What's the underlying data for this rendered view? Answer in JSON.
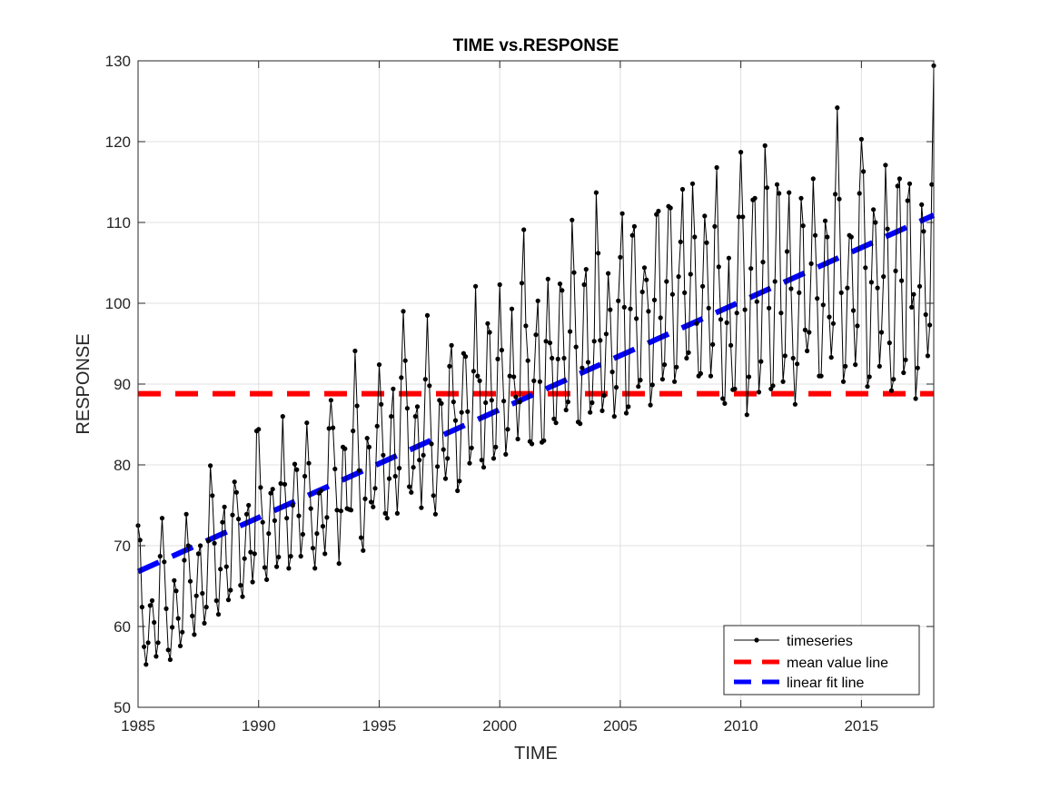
{
  "chart_data": {
    "type": "line",
    "title": "TIME vs.RESPONSE",
    "xlabel": "TIME",
    "ylabel": "RESPONSE",
    "xlim": [
      1985,
      2018
    ],
    "ylim": [
      50,
      130
    ],
    "xticks": [
      1985,
      1990,
      1995,
      2000,
      2005,
      2010,
      2015
    ],
    "yticks": [
      50,
      60,
      70,
      80,
      90,
      100,
      110,
      120,
      130
    ],
    "grid": true,
    "legend_position": "bottom-right",
    "colors": {
      "timeseries": "#000000",
      "mean": "#ff0000",
      "fit": "#0000ff",
      "grid": "#e0e0e0",
      "axis": "#262626"
    },
    "timeseries": {
      "name": "timeseries",
      "x_start": 1985,
      "step": 0.0833333,
      "values": [
        72.5,
        70.7,
        62.4,
        57.5,
        55.3,
        58.0,
        62.6,
        63.2,
        60.5,
        56.3,
        58.0,
        68.7,
        73.4,
        68.0,
        62.2,
        57.1,
        55.9,
        59.9,
        65.7,
        64.4,
        61.0,
        57.6,
        59.3,
        68.2,
        73.9,
        70.0,
        65.6,
        61.3,
        59.0,
        63.8,
        69.0,
        70.0,
        64.1,
        60.4,
        62.4,
        70.6,
        79.9,
        76.2,
        70.3,
        63.2,
        61.5,
        67.1,
        72.9,
        74.8,
        67.4,
        63.3,
        64.5,
        73.8,
        77.9,
        76.6,
        73.3,
        65.1,
        63.7,
        68.4,
        73.9,
        75.0,
        69.2,
        65.5,
        69.0,
        84.2,
        84.4,
        77.2,
        72.9,
        67.3,
        65.8,
        71.5,
        76.5,
        77.0,
        73.1,
        67.4,
        68.6,
        77.7,
        86.0,
        77.6,
        73.4,
        67.2,
        68.7,
        75.0,
        80.1,
        79.4,
        73.7,
        68.7,
        71.4,
        78.6,
        85.2,
        80.2,
        74.6,
        69.7,
        67.2,
        71.5,
        76.5,
        76.8,
        72.4,
        69.0,
        73.5,
        84.5,
        88.0,
        84.6,
        79.5,
        74.4,
        67.8,
        74.3,
        82.2,
        82.0,
        74.6,
        74.5,
        74.4,
        84.2,
        94.1,
        87.3,
        79.3,
        71.0,
        69.4,
        75.8,
        83.3,
        82.2,
        75.4,
        74.8,
        77.1,
        84.8,
        92.4,
        87.5,
        81.2,
        74.0,
        73.4,
        78.3,
        86.0,
        89.4,
        78.6,
        74.0,
        79.6,
        90.8,
        99.0,
        92.9,
        87.0,
        77.3,
        76.6,
        79.7,
        86.0,
        87.2,
        80.6,
        74.7,
        81.2,
        90.6,
        98.5,
        89.8,
        82.6,
        76.2,
        73.9,
        79.8,
        88.0,
        87.6,
        81.9,
        78.3,
        80.8,
        92.2,
        94.8,
        87.8,
        85.5,
        76.8,
        78.0,
        86.5,
        93.8,
        93.4,
        86.6,
        80.2,
        82.1,
        91.6,
        102.1,
        91.0,
        90.4,
        80.6,
        79.7,
        87.7,
        97.5,
        96.4,
        88.0,
        80.8,
        82.2,
        93.1,
        102.3,
        94.2,
        87.9,
        81.3,
        84.4,
        91.0,
        99.3,
        90.9,
        88.4,
        83.2,
        87.8,
        102.5,
        109.1,
        97.2,
        92.9,
        82.9,
        82.6,
        90.4,
        96.1,
        100.3,
        90.3,
        82.8,
        83.0,
        95.3,
        103.0,
        95.1,
        93.2,
        85.7,
        85.2,
        93.1,
        102.4,
        101.6,
        93.2,
        86.8,
        87.8,
        96.5,
        110.3,
        103.8,
        94.6,
        85.3,
        85.1,
        92.0,
        102.3,
        104.2,
        92.7,
        86.5,
        87.7,
        95.3,
        113.7,
        106.2,
        95.4,
        86.7,
        88.6,
        96.2,
        103.7,
        99.2,
        91.5,
        86.0,
        89.6,
        100.3,
        105.7,
        111.1,
        99.5,
        86.4,
        87.2,
        99.3,
        108.4,
        109.5,
        98.1,
        89.7,
        90.5,
        101.4,
        104.4,
        102.9,
        99.0,
        87.4,
        89.9,
        100.4,
        111.0,
        111.4,
        98.2,
        90.6,
        92.4,
        102.7,
        112.0,
        111.8,
        101.1,
        90.3,
        92.1,
        103.3,
        107.6,
        114.1,
        101.3,
        93.2,
        93.9,
        103.6,
        114.8,
        108.2,
        97.5,
        91.0,
        91.3,
        102.1,
        110.8,
        107.5,
        99.4,
        91.0,
        94.9,
        109.5,
        116.8,
        104.5,
        98.0,
        88.2,
        87.6,
        97.6,
        105.6,
        94.8,
        89.3,
        89.4,
        98.8,
        110.7,
        118.7,
        110.7,
        99.2,
        86.2,
        90.9,
        104.3,
        112.8,
        113.0,
        100.2,
        89.0,
        92.8,
        105.1,
        119.5,
        114.3,
        99.4,
        89.4,
        89.8,
        102.7,
        114.7,
        113.6,
        98.8,
        90.3,
        93.5,
        106.4,
        113.7,
        101.8,
        93.2,
        87.5,
        92.5,
        101.3,
        113.0,
        109.6,
        96.7,
        94.1,
        96.4,
        104.9,
        115.4,
        108.4,
        100.6,
        91.0,
        91.0,
        99.8,
        110.2,
        108.2,
        98.3,
        93.3,
        97.5,
        113.5,
        124.2,
        112.9,
        101.3,
        90.3,
        92.2,
        101.9,
        108.4,
        108.2,
        99.1,
        92.4,
        97.2,
        113.6,
        120.3,
        116.3,
        104.4,
        89.7,
        90.9,
        102.6,
        111.6,
        110.0,
        101.9,
        92.2,
        96.4,
        103.3,
        117.1,
        109.2,
        95.1,
        89.2,
        90.6,
        104.0,
        114.5,
        115.4,
        102.8,
        91.4,
        93.0,
        112.7,
        114.8,
        99.5,
        101.1,
        88.2,
        92.0,
        102.1,
        112.2,
        108.9,
        98.6,
        93.5,
        97.3,
        114.7,
        129.4
      ]
    },
    "mean_line": {
      "name": "mean value line",
      "y": 88.8
    },
    "fit_line": {
      "name": "linear fit line",
      "x": [
        1985,
        2018
      ],
      "y": [
        66.8,
        110.9
      ]
    }
  }
}
